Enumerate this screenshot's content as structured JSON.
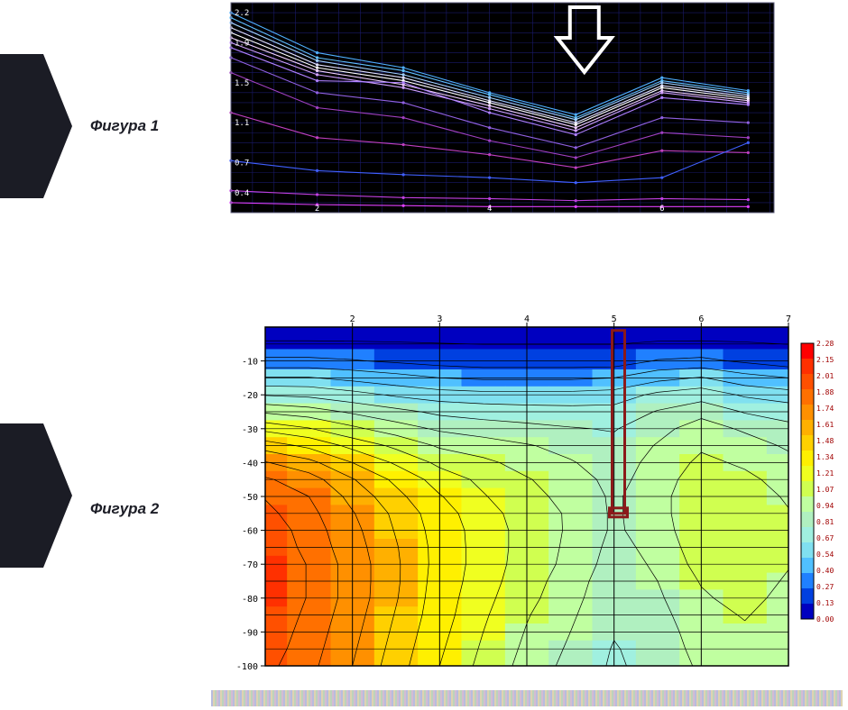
{
  "labels": {
    "fig1": "Фигура 1",
    "fig2": "Фигура 2"
  },
  "pointer_color": "#1b1c25",
  "figure1": {
    "type": "line",
    "background": "#000000",
    "grid_color": "#1a1a6a",
    "axis_color": "#ffffff",
    "xlim": [
      1,
      7.3
    ],
    "ylim": [
      0.2,
      2.3
    ],
    "yticks": [
      0.4,
      0.7,
      1.1,
      1.5,
      1.9,
      2.2
    ],
    "xticks": [
      2,
      4,
      6
    ],
    "tick_fontsize": 9,
    "tick_color": "#ffffff",
    "arrow": {
      "x": 5.1,
      "color": "#ffffff"
    },
    "x_points": [
      1,
      2,
      3,
      4,
      5,
      6,
      7
    ],
    "series": [
      {
        "color": "#50b0ff",
        "y": [
          2.2,
          1.8,
          1.65,
          1.4,
          1.18,
          1.55,
          1.42
        ]
      },
      {
        "color": "#60c0ff",
        "y": [
          2.15,
          1.75,
          1.62,
          1.38,
          1.15,
          1.52,
          1.4
        ]
      },
      {
        "color": "#a0d0ff",
        "y": [
          2.1,
          1.72,
          1.58,
          1.35,
          1.13,
          1.5,
          1.38
        ]
      },
      {
        "color": "#e0e0ff",
        "y": [
          2.05,
          1.68,
          1.55,
          1.32,
          1.1,
          1.47,
          1.36
        ]
      },
      {
        "color": "#ffffff",
        "y": [
          2.0,
          1.65,
          1.52,
          1.3,
          1.08,
          1.45,
          1.34
        ]
      },
      {
        "color": "#f0d0ff",
        "y": [
          1.95,
          1.62,
          1.48,
          1.27,
          1.05,
          1.42,
          1.32
        ]
      },
      {
        "color": "#d0a0ff",
        "y": [
          1.9,
          1.58,
          1.45,
          1.24,
          1.02,
          1.4,
          1.3
        ]
      },
      {
        "color": "#b080ff",
        "y": [
          1.85,
          1.52,
          1.5,
          1.2,
          0.98,
          1.35,
          1.28
        ]
      },
      {
        "color": "#9060e0",
        "y": [
          1.75,
          1.4,
          1.3,
          1.05,
          0.85,
          1.15,
          1.1
        ]
      },
      {
        "color": "#a040c0",
        "y": [
          1.6,
          1.25,
          1.15,
          0.92,
          0.75,
          1.0,
          0.95
        ]
      },
      {
        "color": "#c040c0",
        "y": [
          1.2,
          0.95,
          0.88,
          0.78,
          0.65,
          0.82,
          0.8
        ]
      },
      {
        "color": "#4060ff",
        "y": [
          0.72,
          0.62,
          0.58,
          0.55,
          0.5,
          0.55,
          0.9
        ]
      },
      {
        "color": "#c040e0",
        "y": [
          0.42,
          0.38,
          0.35,
          0.34,
          0.32,
          0.34,
          0.33
        ]
      },
      {
        "color": "#e040ff",
        "y": [
          0.3,
          0.28,
          0.27,
          0.26,
          0.26,
          0.26,
          0.26
        ]
      }
    ]
  },
  "figure2": {
    "type": "heatmap",
    "background": "#ffffff",
    "axis_color": "#000000",
    "grid_color": "#000000",
    "xlim": [
      1,
      7
    ],
    "ylim": [
      -100,
      0
    ],
    "xticks": [
      2,
      3,
      4,
      5,
      6,
      7
    ],
    "yticks": [
      -10,
      -20,
      -30,
      -40,
      -50,
      -60,
      -70,
      -80,
      -90,
      -100
    ],
    "tick_fontsize": 10,
    "tick_color": "#000000",
    "rows": [
      -3,
      -10,
      -15,
      -20,
      -25,
      -30,
      -35,
      -40,
      -45,
      -50,
      -55,
      -60,
      -65,
      -70,
      -75,
      -80,
      -85,
      -90,
      -95,
      -100
    ],
    "cols": [
      1.0,
      1.5,
      2.0,
      2.5,
      3.0,
      3.5,
      4.0,
      4.5,
      5.0,
      5.5,
      6.0,
      6.5,
      7.0
    ],
    "grid_values": [
      [
        0.1,
        0.1,
        0.1,
        0.1,
        0.1,
        0.1,
        0.1,
        0.1,
        0.1,
        0.1,
        0.1,
        0.1,
        0.1
      ],
      [
        0.3,
        0.3,
        0.28,
        0.25,
        0.22,
        0.2,
        0.2,
        0.2,
        0.2,
        0.28,
        0.3,
        0.25,
        0.2
      ],
      [
        0.55,
        0.55,
        0.5,
        0.45,
        0.4,
        0.38,
        0.38,
        0.38,
        0.4,
        0.5,
        0.55,
        0.45,
        0.4
      ],
      [
        0.8,
        0.78,
        0.72,
        0.65,
        0.6,
        0.58,
        0.58,
        0.58,
        0.6,
        0.7,
        0.75,
        0.65,
        0.6
      ],
      [
        1.05,
        1.0,
        0.92,
        0.85,
        0.78,
        0.75,
        0.73,
        0.72,
        0.72,
        0.82,
        0.9,
        0.8,
        0.75
      ],
      [
        1.3,
        1.22,
        1.1,
        1.0,
        0.92,
        0.88,
        0.85,
        0.82,
        0.8,
        0.9,
        1.0,
        0.92,
        0.85
      ],
      [
        1.55,
        1.45,
        1.3,
        1.18,
        1.05,
        1.0,
        0.95,
        0.9,
        0.85,
        0.95,
        1.05,
        1.0,
        0.92
      ],
      [
        1.75,
        1.65,
        1.48,
        1.32,
        1.18,
        1.1,
        1.02,
        0.95,
        0.88,
        0.98,
        1.1,
        1.05,
        0.98
      ],
      [
        1.9,
        1.8,
        1.62,
        1.45,
        1.28,
        1.18,
        1.08,
        1.0,
        0.9,
        1.0,
        1.15,
        1.1,
        1.02
      ],
      [
        2.0,
        1.88,
        1.7,
        1.52,
        1.35,
        1.22,
        1.12,
        1.02,
        0.92,
        1.02,
        1.18,
        1.15,
        1.05
      ],
      [
        2.05,
        1.92,
        1.75,
        1.58,
        1.4,
        1.26,
        1.15,
        1.05,
        0.92,
        1.02,
        1.18,
        1.18,
        1.08
      ],
      [
        2.1,
        1.95,
        1.78,
        1.6,
        1.42,
        1.28,
        1.16,
        1.05,
        0.92,
        1.0,
        1.18,
        1.2,
        1.1
      ],
      [
        2.12,
        1.97,
        1.8,
        1.62,
        1.43,
        1.28,
        1.16,
        1.04,
        0.9,
        0.98,
        1.15,
        1.2,
        1.1
      ],
      [
        2.15,
        2.0,
        1.82,
        1.63,
        1.43,
        1.28,
        1.15,
        1.03,
        0.88,
        0.96,
        1.12,
        1.18,
        1.08
      ],
      [
        2.15,
        2.0,
        1.82,
        1.63,
        1.42,
        1.27,
        1.13,
        1.0,
        0.86,
        0.94,
        1.08,
        1.15,
        1.05
      ],
      [
        2.15,
        2.0,
        1.82,
        1.62,
        1.41,
        1.25,
        1.11,
        0.98,
        0.85,
        0.92,
        1.05,
        1.12,
        1.02
      ],
      [
        2.12,
        1.98,
        1.8,
        1.6,
        1.4,
        1.23,
        1.08,
        0.96,
        0.83,
        0.9,
        1.02,
        1.08,
        1.0
      ],
      [
        2.1,
        1.96,
        1.78,
        1.58,
        1.38,
        1.21,
        1.06,
        0.94,
        0.82,
        0.88,
        1.0,
        1.05,
        0.98
      ],
      [
        2.08,
        1.94,
        1.76,
        1.56,
        1.36,
        1.19,
        1.04,
        0.92,
        0.8,
        0.87,
        0.98,
        1.03,
        0.96
      ],
      [
        2.05,
        1.92,
        1.74,
        1.54,
        1.34,
        1.17,
        1.02,
        0.9,
        0.79,
        0.86,
        0.96,
        1.01,
        0.95
      ]
    ],
    "colorbar": {
      "values": [
        2.28,
        2.15,
        2.01,
        1.88,
        1.74,
        1.61,
        1.48,
        1.34,
        1.21,
        1.07,
        0.94,
        0.81,
        0.67,
        0.54,
        0.4,
        0.27,
        0.13,
        0.0
      ],
      "colors": [
        "#ff0000",
        "#ff3000",
        "#ff5000",
        "#ff7000",
        "#ff9000",
        "#ffb000",
        "#ffd000",
        "#fff000",
        "#f0ff20",
        "#d0ff50",
        "#c0ffa0",
        "#b0f0c0",
        "#a0f0e0",
        "#80e0f0",
        "#50c0ff",
        "#2080ff",
        "#0040e0",
        "#0000c0"
      ]
    },
    "marker": {
      "x": 5.05,
      "ytop": -1,
      "ybot": -55,
      "color": "#8b1a1a",
      "width": 14
    }
  }
}
